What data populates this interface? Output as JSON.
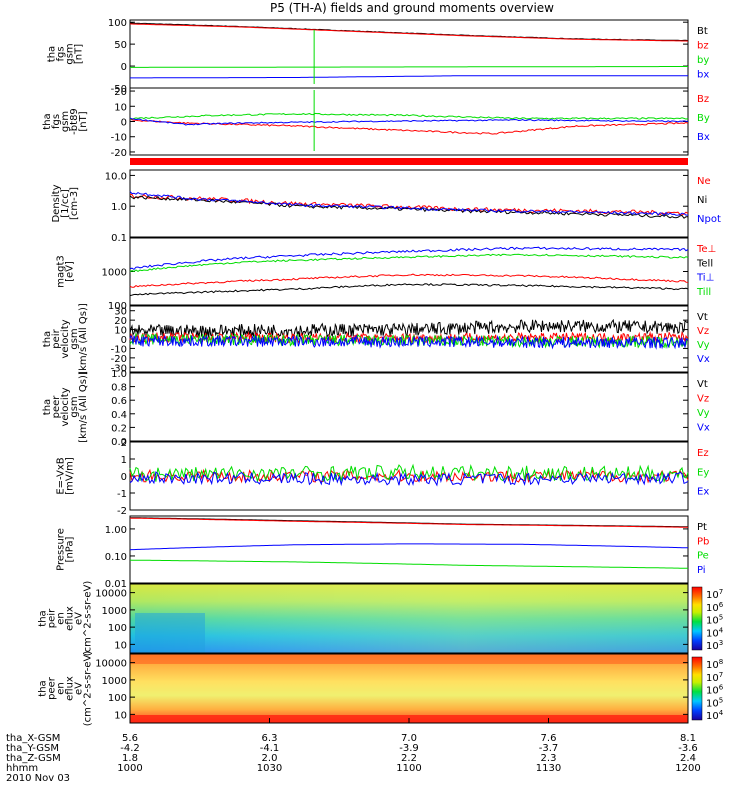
{
  "title": "P5 (TH-A) fields and ground moments overview",
  "colors": {
    "black": "#000000",
    "red": "#ff0000",
    "green": "#00dd00",
    "blue": "#0000ff"
  },
  "chart_data": [
    {
      "type": "line",
      "ylabel": [
        "tha",
        "fgs",
        "gsm",
        "[nT]"
      ],
      "yticks": [
        "100",
        "50",
        "0",
        "-50"
      ],
      "ylim": [
        -50,
        105
      ],
      "series": [
        {
          "name": "Bt",
          "color": "black",
          "values": [
            [
              0,
              98
            ],
            [
              0.2,
              90
            ],
            [
              0.4,
              80
            ],
            [
              0.6,
              70
            ],
            [
              0.8,
              62
            ],
            [
              1,
              58
            ]
          ]
        },
        {
          "name": "bz",
          "color": "red",
          "values": [
            [
              0,
              96
            ],
            [
              0.2,
              89
            ],
            [
              0.4,
              79
            ],
            [
              0.6,
              69
            ],
            [
              0.8,
              61
            ],
            [
              1,
              57
            ]
          ]
        },
        {
          "name": "by",
          "color": "green",
          "values": [
            [
              0,
              -3
            ],
            [
              0.5,
              -2
            ],
            [
              1,
              -1
            ]
          ]
        },
        {
          "name": "bx",
          "color": "blue",
          "values": [
            [
              0,
              -27
            ],
            [
              0.3,
              -26
            ],
            [
              0.6,
              -22
            ],
            [
              1,
              -22
            ]
          ]
        }
      ]
    },
    {
      "type": "line",
      "ylabel": [
        "tha",
        "fgs",
        "gsm",
        "-bt89",
        "[nT]"
      ],
      "yticks": [
        "20",
        "10",
        "0",
        "-10",
        "-20"
      ],
      "ylim": [
        -22,
        22
      ],
      "series": [
        {
          "name": "Bz",
          "color": "red",
          "values": [
            [
              0,
              1
            ],
            [
              0.1,
              -1
            ],
            [
              0.3,
              -3
            ],
            [
              0.5,
              -6
            ],
            [
              0.65,
              -8
            ],
            [
              0.8,
              -3
            ],
            [
              1,
              -1
            ]
          ]
        },
        {
          "name": "By",
          "color": "green",
          "values": [
            [
              0,
              2
            ],
            [
              0.15,
              4
            ],
            [
              0.3,
              5
            ],
            [
              0.5,
              4
            ],
            [
              0.7,
              2
            ],
            [
              1,
              2
            ]
          ]
        },
        {
          "name": "Bx",
          "color": "blue",
          "values": [
            [
              0,
              2
            ],
            [
              0.1,
              -2
            ],
            [
              0.2,
              -1
            ],
            [
              0.4,
              0
            ],
            [
              0.7,
              1
            ],
            [
              1,
              0
            ]
          ]
        }
      ]
    },
    {
      "type": "line",
      "ylabel": [
        "Density",
        "[1/cc]",
        "[cm-3]"
      ],
      "yticks": [
        "10.0",
        "1.0",
        "0.1"
      ],
      "ylim": [
        0.1,
        15
      ],
      "log": true,
      "series": [
        {
          "name": "Ne",
          "color": "red",
          "values": [
            [
              0,
              2.2
            ],
            [
              0.3,
              1.2
            ],
            [
              0.6,
              0.8
            ],
            [
              1,
              0.6
            ]
          ]
        },
        {
          "name": "Ni",
          "color": "black",
          "values": [
            [
              0,
              2.0
            ],
            [
              0.3,
              1.0
            ],
            [
              0.6,
              0.7
            ],
            [
              1,
              0.45
            ]
          ]
        },
        {
          "name": "Npot",
          "color": "blue",
          "values": [
            [
              0,
              2.8
            ],
            [
              0.1,
              1.8
            ],
            [
              0.3,
              1.1
            ],
            [
              0.6,
              0.75
            ],
            [
              1,
              0.55
            ]
          ]
        }
      ]
    },
    {
      "type": "line",
      "ylabel": [
        "magt3",
        "[eV]"
      ],
      "yticks": [
        "1000",
        "100"
      ],
      "ylim": [
        100,
        10000
      ],
      "log": true,
      "series": [
        {
          "name": "Te⊥",
          "color": "red",
          "values": [
            [
              0,
              350
            ],
            [
              0.3,
              600
            ],
            [
              0.5,
              800
            ],
            [
              0.7,
              750
            ],
            [
              1,
              500
            ]
          ]
        },
        {
          "name": "Tell",
          "color": "black",
          "values": [
            [
              0,
              200
            ],
            [
              0.3,
              300
            ],
            [
              0.5,
              420
            ],
            [
              0.7,
              380
            ],
            [
              1,
              300
            ]
          ]
        },
        {
          "name": "Ti⊥",
          "color": "blue",
          "values": [
            [
              0,
              1200
            ],
            [
              0.2,
              2500
            ],
            [
              0.5,
              4000
            ],
            [
              0.7,
              5000
            ],
            [
              1,
              4500
            ]
          ]
        },
        {
          "name": "Till",
          "color": "green",
          "values": [
            [
              0,
              1000
            ],
            [
              0.2,
              1900
            ],
            [
              0.5,
              2700
            ],
            [
              0.7,
              3200
            ],
            [
              1,
              2600
            ]
          ]
        }
      ]
    },
    {
      "type": "line",
      "ylabel": [
        "tha",
        "peir",
        "velocity",
        "gsm",
        "[km/s (All Qs)]"
      ],
      "yticks": [
        "30",
        "20",
        "10",
        "0",
        "-10",
        "-20",
        "-30"
      ],
      "ylim": [
        -35,
        35
      ],
      "series": [
        {
          "name": "Vt",
          "color": "black",
          "values": [
            [
              0,
              8
            ],
            [
              0.5,
              10
            ],
            [
              0.75,
              14
            ],
            [
              1,
              12
            ]
          ]
        },
        {
          "name": "Vz",
          "color": "red",
          "values": [
            [
              0,
              2
            ],
            [
              0.5,
              1
            ],
            [
              1,
              2
            ]
          ]
        },
        {
          "name": "Vy",
          "color": "green",
          "values": [
            [
              0,
              0
            ],
            [
              0.5,
              -2
            ],
            [
              1,
              -3
            ]
          ]
        },
        {
          "name": "Vx",
          "color": "blue",
          "values": [
            [
              0,
              -2
            ],
            [
              0.5,
              -3
            ],
            [
              1,
              -4
            ]
          ]
        }
      ]
    },
    {
      "type": "line",
      "ylabel": [
        "tha",
        "peer",
        "velocity",
        "gsm",
        "[km/s (All Qs)]"
      ],
      "yticks": [
        "1.0",
        "0.8",
        "0.6",
        "0.4",
        "0.2",
        "0.0"
      ],
      "ylim": [
        0,
        1
      ],
      "series": [
        {
          "name": "Vt",
          "color": "black",
          "values": []
        },
        {
          "name": "Vz",
          "color": "red",
          "values": []
        },
        {
          "name": "Vy",
          "color": "green",
          "values": []
        },
        {
          "name": "Vx",
          "color": "blue",
          "values": []
        }
      ]
    },
    {
      "type": "line",
      "ylabel": [
        "E=-VxB",
        "[mV/m]"
      ],
      "yticks": [
        "2",
        "1",
        "0",
        "-1",
        "-2"
      ],
      "ylim": [
        -2,
        2
      ],
      "series": [
        {
          "name": "Ez",
          "color": "red",
          "values": [
            [
              0,
              0
            ],
            [
              0.5,
              0
            ],
            [
              1,
              0
            ]
          ]
        },
        {
          "name": "Ey",
          "color": "green",
          "values": [
            [
              0,
              0.1
            ],
            [
              0.5,
              0.2
            ],
            [
              1,
              0.1
            ]
          ]
        },
        {
          "name": "Ex",
          "color": "blue",
          "values": [
            [
              0,
              -0.1
            ],
            [
              0.5,
              -0.2
            ],
            [
              1,
              -0.1
            ]
          ]
        }
      ]
    },
    {
      "type": "line",
      "ylabel": [
        "Pressure",
        "[nPa]"
      ],
      "yticks": [
        "1.00",
        "0.10",
        "0.01"
      ],
      "ylim": [
        0.01,
        3
      ],
      "log": true,
      "series": [
        {
          "name": "Pt",
          "color": "black",
          "values": [
            [
              0,
              2.6
            ],
            [
              0.3,
              2.0
            ],
            [
              0.6,
              1.5
            ],
            [
              1,
              1.2
            ]
          ]
        },
        {
          "name": "Pb",
          "color": "red",
          "values": [
            [
              0,
              2.5
            ],
            [
              0.3,
              1.9
            ],
            [
              0.6,
              1.45
            ],
            [
              1,
              1.15
            ]
          ]
        },
        {
          "name": "Pe",
          "color": "green",
          "values": [
            [
              0,
              0.07
            ],
            [
              0.3,
              0.06
            ],
            [
              0.6,
              0.045
            ],
            [
              1,
              0.035
            ]
          ]
        },
        {
          "name": "Pi",
          "color": "blue",
          "values": [
            [
              0,
              0.17
            ],
            [
              0.3,
              0.26
            ],
            [
              0.5,
              0.28
            ],
            [
              0.7,
              0.27
            ],
            [
              1,
              0.2
            ]
          ]
        }
      ]
    },
    {
      "type": "heatmap",
      "ylabel": [
        "tha",
        "peir",
        "en",
        "eflux",
        "eV",
        "(cm^2-s-sr-eV)"
      ],
      "yticks": [
        "10000",
        "1000",
        "100",
        "10"
      ],
      "colorbar": {
        "labels": [
          "10^7",
          "10^6",
          "10^5",
          "10^4",
          "10^3"
        ]
      }
    },
    {
      "type": "heatmap",
      "ylabel": [
        "tha",
        "peer",
        "en",
        "eflux",
        "eV",
        "(cm^2-s-sr-eV)"
      ],
      "yticks": [
        "10000",
        "1000",
        "100",
        "10"
      ],
      "colorbar": {
        "labels": [
          "10^8",
          "10^7",
          "10^6",
          "10^5",
          "10^4"
        ]
      }
    }
  ],
  "xaxis": {
    "rows": [
      {
        "label": "tha_X-GSM",
        "values": [
          "5.6",
          "6.3",
          "7.0",
          "7.6",
          "8.1"
        ]
      },
      {
        "label": "tha_Y-GSM",
        "values": [
          "-4.2",
          "-4.1",
          "-3.9",
          "-3.7",
          "-3.6"
        ]
      },
      {
        "label": "tha_Z-GSM",
        "values": [
          "1.8",
          "2.0",
          "2.2",
          "2.3",
          "2.4"
        ]
      },
      {
        "label": "hhmm",
        "values": [
          "1000",
          "1030",
          "1100",
          "1130",
          "1200"
        ]
      }
    ],
    "date": "2010 Nov 03"
  }
}
